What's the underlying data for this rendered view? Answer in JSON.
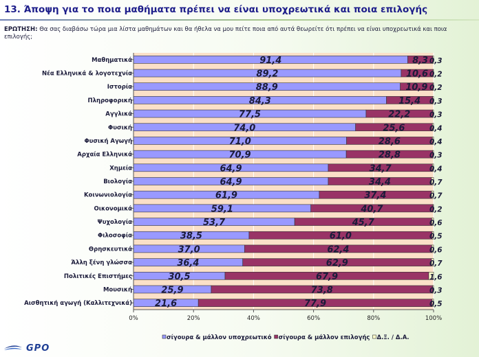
{
  "header": {
    "title": "13. Άποψη για το ποια μαθήματα πρέπει να είναι υποχρεωτικά και ποια επιλογής",
    "question_label": "ΕΡΩΤΗΣΗ:",
    "question_text": "Θα σας διαβάσω τώρα μια λίστα μαθημάτων και θα ήθελα να μου πείτε ποια από αυτά θεωρείτε ότι πρέπει να είναι υποχρεωτικά και ποια επιλογής;"
  },
  "logo": {
    "text": "GPO"
  },
  "chart_data": {
    "type": "bar",
    "orientation": "horizontal",
    "stacked": "percent",
    "categories": [
      "Μαθηματικά",
      "Νέα Ελληνικά & λογοτεχνία",
      "Ιστορία",
      "Πληροφορική",
      "Αγγλικά",
      "Φυσική",
      "Φυσική Αγωγή",
      "Αρχαία Ελληνικά",
      "Χημεία",
      "Βιολογία",
      "Κοινωνιολογία",
      "Οικονομικά",
      "Ψυχολογία",
      "Φιλοσοφία",
      "Θρησκευτικά",
      "Άλλη ξένη γλώσσα",
      "Πολιτικές Επιστήμες",
      "Μουσική",
      "Αισθητική αγωγή (Καλλιτεχνικά)"
    ],
    "series": [
      {
        "name": "σίγουρα & μάλλον υποχρεωτικό",
        "color": "#9999ff",
        "values": [
          91.4,
          89.2,
          88.9,
          84.3,
          77.5,
          74.0,
          71.0,
          70.9,
          64.9,
          64.9,
          61.9,
          59.1,
          53.7,
          38.5,
          37.0,
          36.4,
          30.5,
          25.9,
          21.6
        ],
        "labels": [
          "91,4",
          "89,2",
          "88,9",
          "84,3",
          "77,5",
          "74,0",
          "71,0",
          "70,9",
          "64,9",
          "64,9",
          "61,9",
          "59,1",
          "53,7",
          "38,5",
          "37,0",
          "36,4",
          "30,5",
          "25,9",
          "21,6"
        ]
      },
      {
        "name": "σίγουρα & μάλλον επιλογής",
        "color": "#993366",
        "values": [
          8.3,
          10.6,
          10.9,
          15.4,
          22.2,
          25.6,
          28.6,
          28.8,
          34.7,
          34.4,
          37.4,
          40.7,
          45.7,
          61.0,
          62.4,
          62.9,
          67.9,
          73.8,
          77.9
        ],
        "labels": [
          "8,3",
          "10,6",
          "10,9",
          "15,4",
          "22,2",
          "25,6",
          "28,6",
          "28,8",
          "34,7",
          "34,4",
          "37,4",
          "40,7",
          "45,7",
          "61,0",
          "62,4",
          "62,9",
          "67,9",
          "73,8",
          "77,9"
        ]
      },
      {
        "name": "Δ.Ξ. / Δ.Α.",
        "color": "#ffffcc",
        "values": [
          0.3,
          0.2,
          0.2,
          0.3,
          0.3,
          0.4,
          0.4,
          0.3,
          0.4,
          0.7,
          0.7,
          0.2,
          0.6,
          0.5,
          0.6,
          0.7,
          1.6,
          0.3,
          0.5
        ],
        "labels": [
          "0,3",
          "0,2",
          "0,2",
          "0,3",
          "0,3",
          "0,4",
          "0,4",
          "0,3",
          "0,4",
          "0,7",
          "0,7",
          "0,2",
          "0,6",
          "0,5",
          "0,6",
          "0,7",
          "1,6",
          "0,3",
          "0,5"
        ]
      }
    ],
    "xlim": [
      0,
      100
    ],
    "xticks": [
      "0%",
      "20%",
      "40%",
      "60%",
      "80%",
      "100%"
    ],
    "grid": true,
    "legend": "bottom",
    "plot_background": "#fbe0c8",
    "value_label_color": "#1b1b3a"
  }
}
